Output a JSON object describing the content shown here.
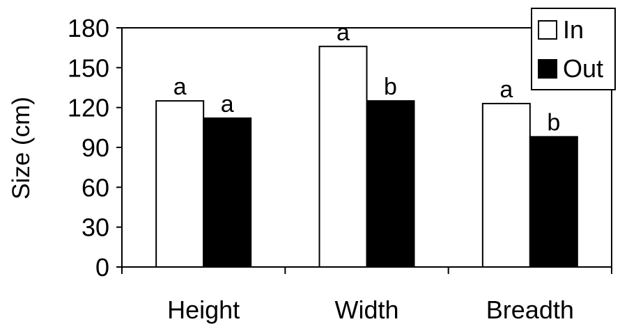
{
  "chart_data": {
    "type": "bar",
    "categories": [
      "Height",
      "Width",
      "Breadth"
    ],
    "series": [
      {
        "name": "In",
        "values": [
          125,
          166,
          123
        ],
        "letters": [
          "a",
          "a",
          "a"
        ]
      },
      {
        "name": "Out",
        "values": [
          112,
          125,
          98
        ],
        "letters": [
          "a",
          "b",
          "b"
        ]
      }
    ],
    "ylabel": "Size (cm)",
    "ylim": [
      0,
      180
    ],
    "yticks": [
      0,
      30,
      60,
      90,
      120,
      150,
      180
    ],
    "grid": false,
    "legend_position": "top-right",
    "colors": {
      "In": "#ffffff",
      "Out": "#000000"
    }
  }
}
